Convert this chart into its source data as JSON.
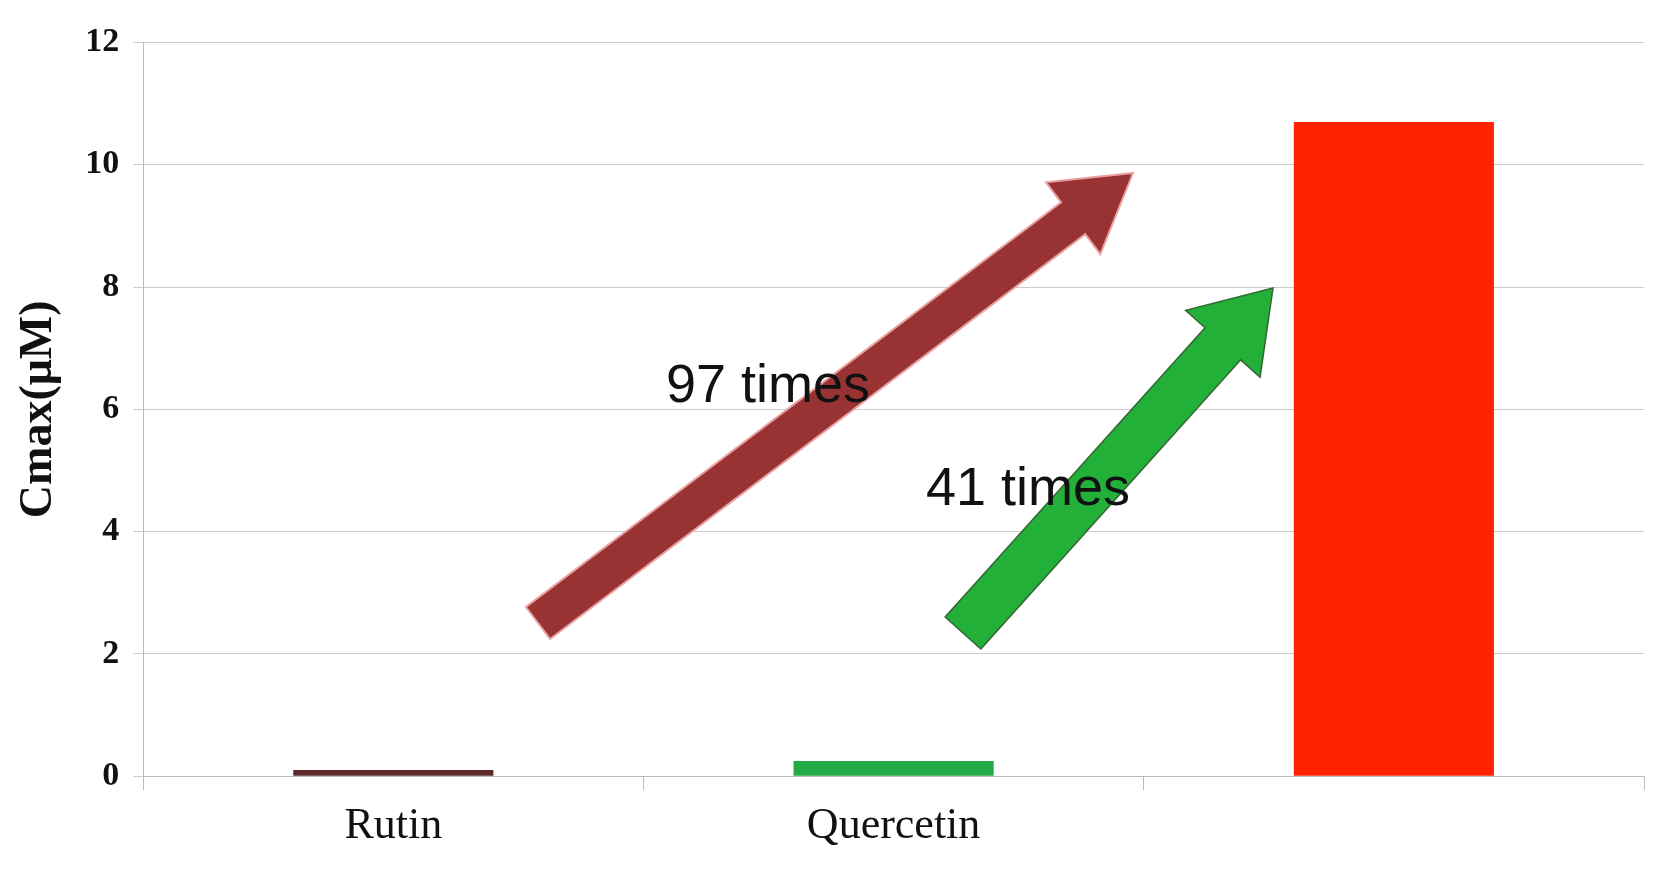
{
  "chart_data": {
    "type": "bar",
    "ylabel": "Cmax(μM)",
    "categories": [
      "Rutin",
      "Quercetin",
      null
    ],
    "values": [
      0.1,
      0.25,
      10.7
    ],
    "colors": [
      "#5a2a2a",
      "#22aa44",
      "#ff2200"
    ],
    "ylim": [
      0,
      12
    ],
    "yticks": [
      0,
      2,
      4,
      6,
      8,
      10,
      12
    ],
    "grid": "y",
    "annotations": [
      "97 times",
      "41 times"
    ]
  }
}
